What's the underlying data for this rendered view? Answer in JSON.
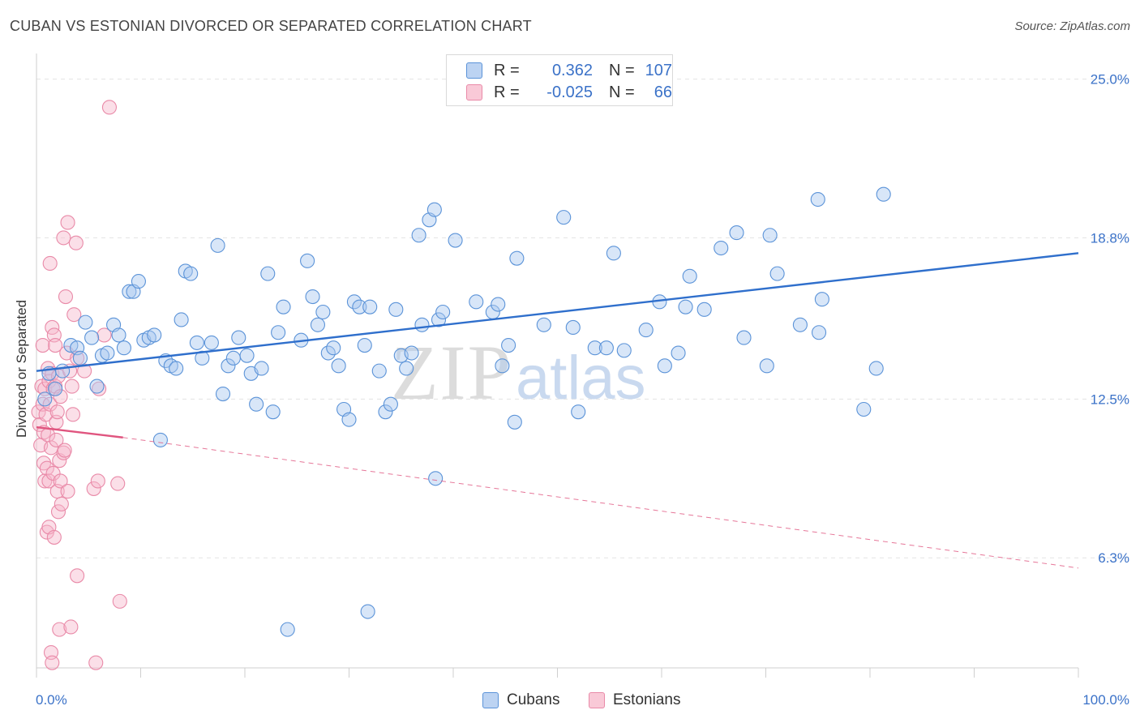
{
  "header": {
    "title": "CUBAN VS ESTONIAN DIVORCED OR SEPARATED CORRELATION CHART",
    "source": "Source: ZipAtlas.com"
  },
  "legend": {
    "rows": [
      {
        "r_label": "R =",
        "r_value": "0.362",
        "n_label": "N =",
        "n_value": "107"
      },
      {
        "r_label": "R =",
        "r_value": "-0.025",
        "n_label": "N =",
        "n_value": "66"
      }
    ]
  },
  "colors": {
    "cubans_fill": "#a9c7ef",
    "cubans_stroke": "#5b93d8",
    "cubans_line": "#2f6fcc",
    "estonians_fill": "#f6b9cb",
    "estonians_stroke": "#e98aa8",
    "estonians_line": "#e0557f",
    "axis_label": "#3b72c8",
    "grid": "#e3e3e3"
  },
  "watermark": {
    "zip": "ZIP",
    "atlas": "atlas"
  },
  "chart_data": {
    "type": "scatter",
    "title": "CUBAN VS ESTONIAN DIVORCED OR SEPARATED CORRELATION CHART",
    "ylabel": "Divorced or Separated",
    "xlabel": "",
    "xlim": [
      0,
      100
    ],
    "ylim": [
      2,
      26
    ],
    "x_tick_labels": [
      "0.0%",
      "100.0%"
    ],
    "y_ticks": [
      6.3,
      12.5,
      18.8,
      25.0
    ],
    "y_tick_labels": [
      "6.3%",
      "12.5%",
      "18.8%",
      "25.0%"
    ],
    "grid": true,
    "legend_position": "top-center",
    "series": [
      {
        "name": "Cubans",
        "R": 0.362,
        "N": 107,
        "trend": {
          "x": [
            0,
            100
          ],
          "y": [
            13.6,
            18.2
          ]
        },
        "points": [
          [
            0.8,
            12.5
          ],
          [
            1.2,
            13.5
          ],
          [
            1.8,
            12.9
          ],
          [
            2.5,
            13.6
          ],
          [
            3.3,
            14.6
          ],
          [
            3.9,
            14.5
          ],
          [
            4.2,
            14.1
          ],
          [
            4.7,
            15.5
          ],
          [
            5.3,
            14.9
          ],
          [
            5.8,
            13.0
          ],
          [
            6.3,
            14.2
          ],
          [
            6.8,
            14.3
          ],
          [
            7.4,
            15.4
          ],
          [
            7.9,
            15.0
          ],
          [
            8.4,
            14.5
          ],
          [
            8.9,
            16.7
          ],
          [
            9.3,
            16.7
          ],
          [
            9.8,
            17.1
          ],
          [
            10.3,
            14.8
          ],
          [
            10.8,
            14.9
          ],
          [
            11.3,
            15.0
          ],
          [
            11.9,
            10.9
          ],
          [
            12.4,
            14.0
          ],
          [
            12.9,
            13.8
          ],
          [
            13.4,
            13.7
          ],
          [
            13.9,
            15.6
          ],
          [
            14.3,
            17.5
          ],
          [
            14.8,
            17.4
          ],
          [
            15.4,
            14.7
          ],
          [
            15.9,
            14.1
          ],
          [
            16.8,
            14.7
          ],
          [
            17.4,
            18.5
          ],
          [
            17.9,
            12.7
          ],
          [
            18.4,
            13.8
          ],
          [
            18.9,
            14.1
          ],
          [
            19.4,
            14.9
          ],
          [
            20.2,
            14.2
          ],
          [
            20.6,
            13.5
          ],
          [
            21.1,
            12.3
          ],
          [
            21.6,
            13.7
          ],
          [
            22.2,
            17.4
          ],
          [
            22.7,
            12.0
          ],
          [
            23.2,
            15.1
          ],
          [
            23.7,
            16.1
          ],
          [
            25.4,
            14.8
          ],
          [
            26.0,
            17.9
          ],
          [
            26.5,
            16.5
          ],
          [
            27.0,
            15.4
          ],
          [
            27.5,
            15.9
          ],
          [
            28.0,
            14.3
          ],
          [
            28.5,
            14.5
          ],
          [
            29.0,
            13.8
          ],
          [
            29.5,
            12.1
          ],
          [
            30.0,
            11.7
          ],
          [
            30.5,
            16.3
          ],
          [
            31.0,
            16.1
          ],
          [
            31.5,
            14.6
          ],
          [
            32.0,
            16.1
          ],
          [
            31.8,
            4.2
          ],
          [
            24.1,
            3.5
          ],
          [
            32.9,
            13.6
          ],
          [
            33.5,
            12.0
          ],
          [
            34.0,
            12.3
          ],
          [
            34.5,
            16.0
          ],
          [
            35.0,
            14.2
          ],
          [
            35.5,
            13.7
          ],
          [
            36.0,
            14.3
          ],
          [
            36.7,
            18.9
          ],
          [
            37.7,
            19.5
          ],
          [
            38.2,
            19.9
          ],
          [
            37.0,
            15.4
          ],
          [
            38.6,
            15.6
          ],
          [
            38.3,
            9.4
          ],
          [
            39.0,
            15.9
          ],
          [
            40.2,
            18.7
          ],
          [
            42.2,
            16.3
          ],
          [
            43.8,
            15.9
          ],
          [
            44.3,
            16.2
          ],
          [
            44.7,
            13.8
          ],
          [
            45.3,
            14.6
          ],
          [
            46.1,
            18.0
          ],
          [
            45.9,
            11.6
          ],
          [
            48.7,
            15.4
          ],
          [
            50.6,
            19.6
          ],
          [
            51.5,
            15.3
          ],
          [
            52.0,
            12.0
          ],
          [
            53.6,
            14.5
          ],
          [
            54.7,
            14.5
          ],
          [
            55.4,
            18.2
          ],
          [
            56.4,
            14.4
          ],
          [
            58.5,
            15.2
          ],
          [
            59.8,
            16.3
          ],
          [
            60.3,
            13.8
          ],
          [
            61.6,
            14.3
          ],
          [
            62.3,
            16.1
          ],
          [
            62.7,
            17.3
          ],
          [
            64.1,
            16.0
          ],
          [
            65.7,
            18.4
          ],
          [
            67.2,
            19.0
          ],
          [
            67.9,
            14.9
          ],
          [
            70.1,
            13.8
          ],
          [
            70.4,
            18.9
          ],
          [
            71.1,
            17.4
          ],
          [
            73.3,
            15.4
          ],
          [
            75.1,
            15.1
          ],
          [
            75.4,
            16.4
          ],
          [
            75.0,
            20.3
          ],
          [
            79.4,
            12.1
          ],
          [
            80.6,
            13.7
          ],
          [
            81.3,
            20.5
          ]
        ]
      },
      {
        "name": "Estonians",
        "R": -0.025,
        "N": 66,
        "trend": {
          "x": [
            0,
            8.3
          ],
          "y": [
            11.4,
            11.0
          ]
        },
        "trend_extended": {
          "x": [
            8.3,
            100
          ],
          "y": [
            11.0,
            5.9
          ]
        },
        "points": [
          [
            0.2,
            12.0
          ],
          [
            0.3,
            11.5
          ],
          [
            0.4,
            10.7
          ],
          [
            0.5,
            13.0
          ],
          [
            0.6,
            12.3
          ],
          [
            0.6,
            14.6
          ],
          [
            0.7,
            11.2
          ],
          [
            0.7,
            10.0
          ],
          [
            0.8,
            12.9
          ],
          [
            0.8,
            9.3
          ],
          [
            0.9,
            11.9
          ],
          [
            1.0,
            9.8
          ],
          [
            1.0,
            7.3
          ],
          [
            1.1,
            13.7
          ],
          [
            1.1,
            11.1
          ],
          [
            1.2,
            13.2
          ],
          [
            1.2,
            9.3
          ],
          [
            1.2,
            7.5
          ],
          [
            1.3,
            17.8
          ],
          [
            1.3,
            12.3
          ],
          [
            1.4,
            10.6
          ],
          [
            1.4,
            2.6
          ],
          [
            1.5,
            15.3
          ],
          [
            1.5,
            13.5
          ],
          [
            1.5,
            2.2
          ],
          [
            1.6,
            12.9
          ],
          [
            1.6,
            9.6
          ],
          [
            1.7,
            15.0
          ],
          [
            1.7,
            7.1
          ],
          [
            1.8,
            14.6
          ],
          [
            1.8,
            13.0
          ],
          [
            1.9,
            11.6
          ],
          [
            1.9,
            10.9
          ],
          [
            2.0,
            12.0
          ],
          [
            2.0,
            8.9
          ],
          [
            2.1,
            13.4
          ],
          [
            2.1,
            8.1
          ],
          [
            2.2,
            10.1
          ],
          [
            2.2,
            3.5
          ],
          [
            2.3,
            12.6
          ],
          [
            2.3,
            9.3
          ],
          [
            2.4,
            8.4
          ],
          [
            2.6,
            18.8
          ],
          [
            2.6,
            10.4
          ],
          [
            2.7,
            10.5
          ],
          [
            2.8,
            16.5
          ],
          [
            2.9,
            14.3
          ],
          [
            3.0,
            19.4
          ],
          [
            3.0,
            8.9
          ],
          [
            3.2,
            13.6
          ],
          [
            3.3,
            3.6
          ],
          [
            3.4,
            13.0
          ],
          [
            3.5,
            11.9
          ],
          [
            3.6,
            15.8
          ],
          [
            3.8,
            18.6
          ],
          [
            3.9,
            5.6
          ],
          [
            3.9,
            14.1
          ],
          [
            4.6,
            13.6
          ],
          [
            5.5,
            9.0
          ],
          [
            5.7,
            2.2
          ],
          [
            5.9,
            9.3
          ],
          [
            6.0,
            12.9
          ],
          [
            7.0,
            23.9
          ],
          [
            6.5,
            15.0
          ],
          [
            7.8,
            9.2
          ],
          [
            8.0,
            4.6
          ]
        ]
      }
    ]
  }
}
